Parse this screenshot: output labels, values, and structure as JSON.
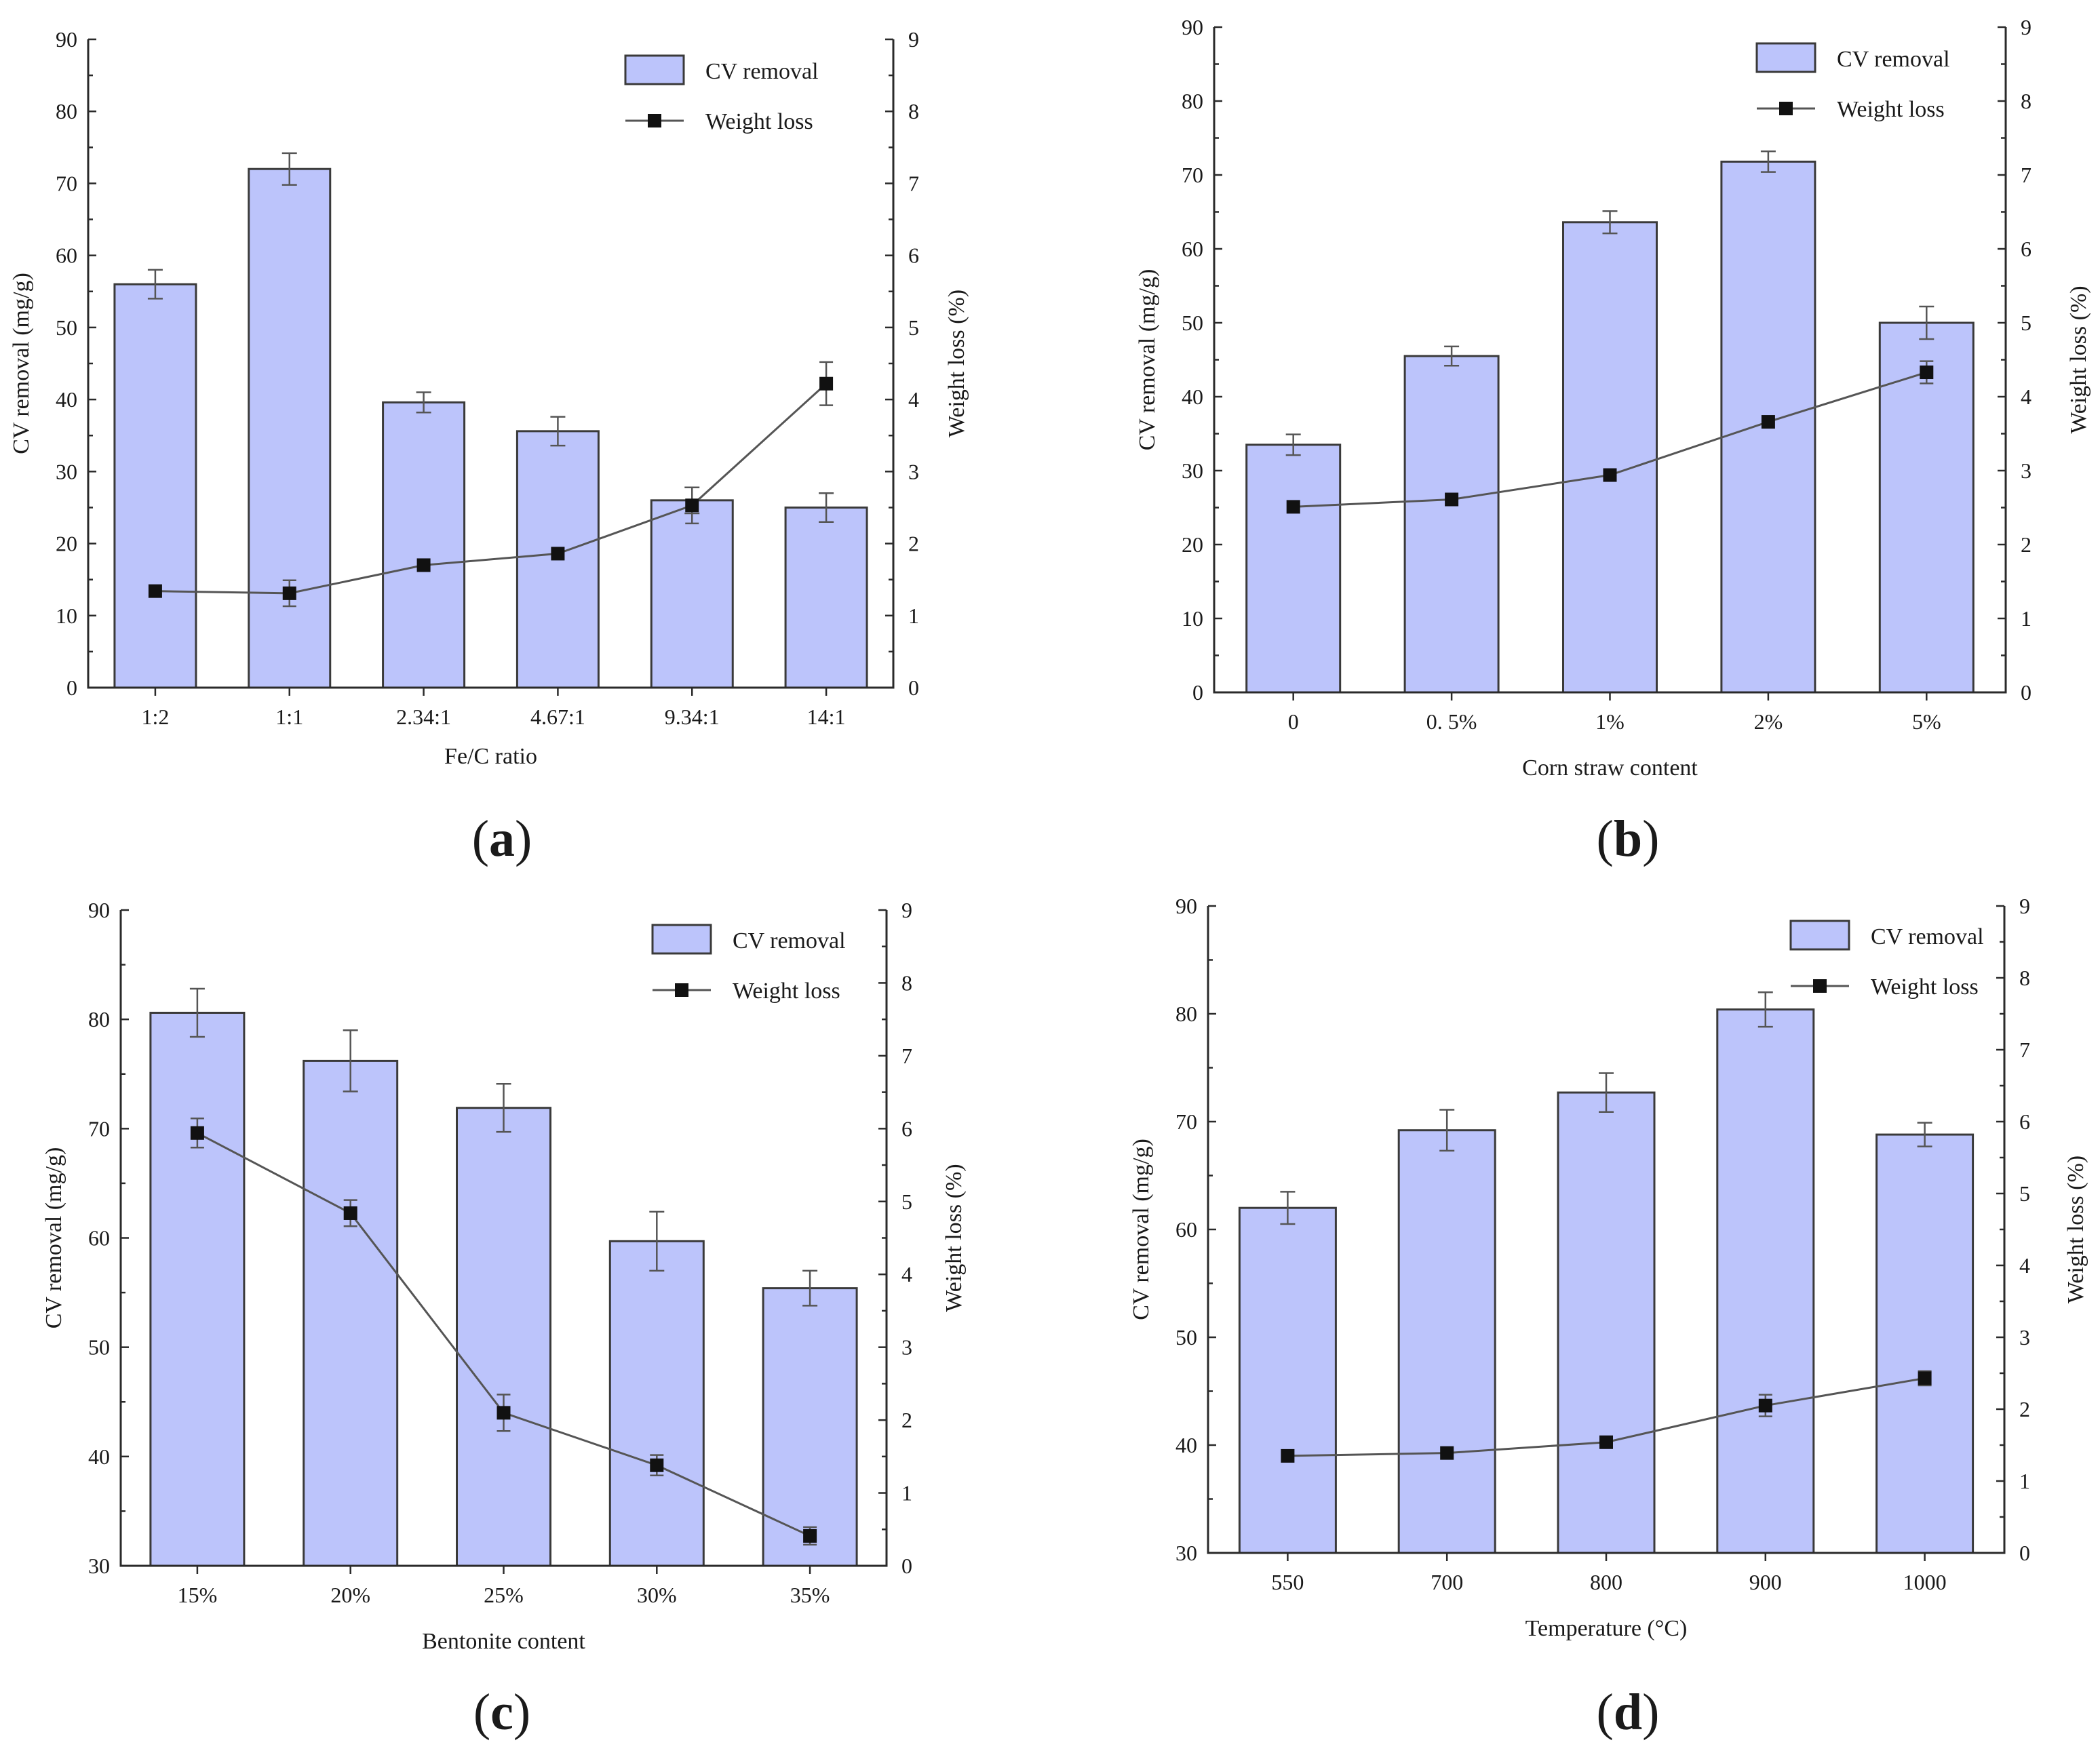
{
  "figure": {
    "panel_labels": [
      "a",
      "b",
      "c",
      "d"
    ]
  },
  "colors": {
    "bar_fill": "#bcc4fb",
    "bar_stroke": "#3a3a3a",
    "line": "#555555",
    "marker": "#111111",
    "axis": "#2a2a2a"
  },
  "chart_data": [
    {
      "panel": "a",
      "type": "bar",
      "xlabel": "Fe/C ratio",
      "ylabel": "CV removal (mg/g)",
      "y2label": "Weight loss (%)",
      "ylim": [
        0,
        90
      ],
      "yticks": [
        0,
        10,
        20,
        30,
        40,
        50,
        60,
        70,
        80,
        90
      ],
      "y2lim": [
        0,
        9
      ],
      "y2ticks": [
        0,
        1,
        2,
        3,
        4,
        5,
        6,
        7,
        8,
        9
      ],
      "categories": [
        "1:2",
        "1:1",
        "2.34:1",
        "4.67:1",
        "9.34:1",
        "14:1"
      ],
      "legend": {
        "bar": "CV removal",
        "line": "Weight loss",
        "position": "top-right"
      },
      "series": [
        {
          "name": "CV removal",
          "kind": "bar",
          "axis": "left",
          "values": [
            56,
            72,
            39.6,
            35.6,
            26,
            25
          ],
          "errors": [
            2,
            2.2,
            1.4,
            2,
            1.8,
            2
          ]
        },
        {
          "name": "Weight loss",
          "kind": "line",
          "axis": "right",
          "values": [
            1.34,
            1.31,
            1.7,
            1.86,
            2.53,
            4.22
          ],
          "errors": [
            0,
            0.18,
            0,
            0,
            0.25,
            0.3
          ]
        }
      ]
    },
    {
      "panel": "b",
      "type": "bar",
      "xlabel": "Corn straw content",
      "ylabel": "CV removal (mg/g)",
      "y2label": "Weight loss (%)",
      "ylim": [
        0,
        90
      ],
      "yticks": [
        0,
        10,
        20,
        30,
        40,
        50,
        60,
        70,
        80,
        90
      ],
      "y2lim": [
        0,
        9
      ],
      "y2ticks": [
        0,
        1,
        2,
        3,
        4,
        5,
        6,
        7,
        8,
        9
      ],
      "categories": [
        "0",
        "0. 5%",
        "1%",
        "2%",
        "5%"
      ],
      "legend": {
        "bar": "CV removal",
        "line": "Weight loss",
        "position": "top-right"
      },
      "series": [
        {
          "name": "CV removal",
          "kind": "bar",
          "axis": "left",
          "values": [
            33.5,
            45.5,
            63.6,
            71.8,
            50
          ],
          "errors": [
            1.4,
            1.3,
            1.5,
            1.4,
            2.2
          ]
        },
        {
          "name": "Weight loss",
          "kind": "line",
          "axis": "right",
          "values": [
            2.51,
            2.61,
            2.94,
            3.66,
            4.33
          ],
          "errors": [
            0,
            0,
            0,
            0,
            0.15
          ]
        }
      ]
    },
    {
      "panel": "c",
      "type": "bar",
      "xlabel": "Bentonite content",
      "ylabel": "CV removal (mg/g)",
      "y2label": "Weight loss (%)",
      "ylim": [
        30,
        90
      ],
      "yticks": [
        30,
        40,
        50,
        60,
        70,
        80,
        90
      ],
      "y2lim": [
        0,
        9
      ],
      "y2ticks": [
        0,
        1,
        2,
        3,
        4,
        5,
        6,
        7,
        8,
        9
      ],
      "categories": [
        "15%",
        "20%",
        "25%",
        "30%",
        "35%"
      ],
      "legend": {
        "bar": "CV removal",
        "line": "Weight loss",
        "position": "top-right"
      },
      "series": [
        {
          "name": "CV removal",
          "kind": "bar",
          "axis": "left",
          "values": [
            80.6,
            76.2,
            71.9,
            59.7,
            55.4
          ],
          "errors": [
            2.2,
            2.8,
            2.2,
            2.7,
            1.6
          ]
        },
        {
          "name": "Weight loss",
          "kind": "line",
          "axis": "right",
          "values": [
            5.94,
            4.84,
            2.1,
            1.38,
            0.41
          ],
          "errors": [
            0.2,
            0.18,
            0.25,
            0.14,
            0.12
          ]
        }
      ]
    },
    {
      "panel": "d",
      "type": "bar",
      "xlabel": "Temperature (°C)",
      "ylabel": "CV removal (mg/g)",
      "y2label": "Weight loss (%)",
      "ylim": [
        30,
        90
      ],
      "yticks": [
        30,
        40,
        50,
        60,
        70,
        80,
        90
      ],
      "y2lim": [
        0,
        9
      ],
      "y2ticks": [
        0,
        1,
        2,
        3,
        4,
        5,
        6,
        7,
        8,
        9
      ],
      "categories": [
        "550",
        "700",
        "800",
        "900",
        "1000"
      ],
      "legend": {
        "bar": "CV removal",
        "line": "Weight loss",
        "position": "top-right"
      },
      "series": [
        {
          "name": "CV removal",
          "kind": "bar",
          "axis": "left",
          "values": [
            62,
            69.2,
            72.7,
            80.4,
            68.8
          ],
          "errors": [
            1.5,
            1.9,
            1.8,
            1.6,
            1.1
          ]
        },
        {
          "name": "Weight loss",
          "kind": "line",
          "axis": "right",
          "values": [
            1.35,
            1.39,
            1.54,
            2.05,
            2.43
          ],
          "errors": [
            0,
            0,
            0,
            0.15,
            0.1
          ]
        }
      ]
    }
  ]
}
